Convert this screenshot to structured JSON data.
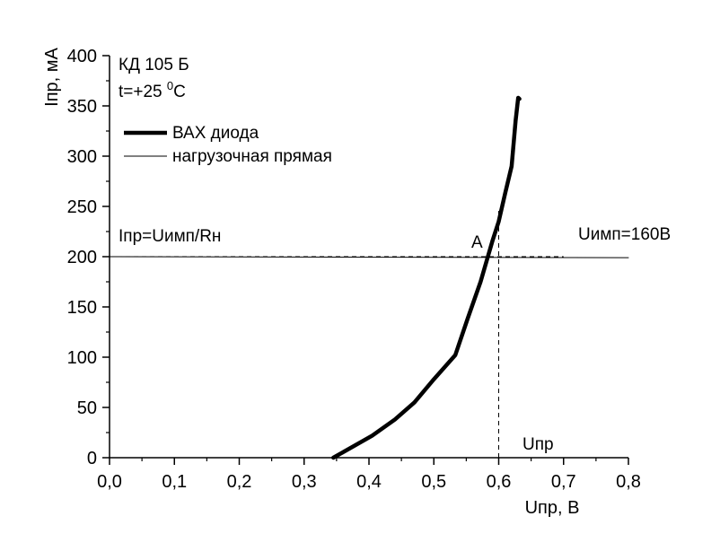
{
  "chart_data": {
    "type": "line",
    "xlabel": "Uпр, В",
    "ylabel": "Iпр, мА",
    "xlim": [
      0,
      0.8
    ],
    "ylim": [
      0,
      400
    ],
    "x_ticks": [
      0,
      0.1,
      0.2,
      0.3,
      0.4,
      0.5,
      0.6,
      0.7,
      0.8
    ],
    "x_tick_labels": [
      "0,0",
      "0,1",
      "0,2",
      "0,3",
      "0,4",
      "0,5",
      "0,6",
      "0,7",
      "0,8"
    ],
    "y_ticks": [
      0,
      50,
      100,
      150,
      200,
      250,
      300,
      350,
      400
    ],
    "y_tick_labels": [
      "0",
      "50",
      "100",
      "150",
      "200",
      "250",
      "300",
      "350",
      "400"
    ],
    "grid": false,
    "legend_position": "top-left",
    "series": [
      {
        "name": "ВАХ диода",
        "style": "thick",
        "x": [
          0.345,
          0.405,
          0.44,
          0.47,
          0.5,
          0.533,
          0.552,
          0.572,
          0.59,
          0.6,
          0.61,
          0.62,
          0.626,
          0.63,
          0.632
        ],
        "y": [
          0,
          22,
          38,
          55,
          78,
          102,
          138,
          175,
          215,
          235,
          263,
          290,
          335,
          358,
          357
        ]
      },
      {
        "name": "нагрузочная прямая",
        "style": "thin",
        "x": [
          0,
          0.8
        ],
        "y": [
          200,
          199
        ]
      }
    ],
    "guides": {
      "vertical_dashed_x": 0.6,
      "vertical_dashed_y_range": [
        0,
        248
      ],
      "horizontal_dashed_y": 200,
      "horizontal_dashed_x_range": [
        0,
        0.7
      ]
    },
    "annotations": {
      "device": "КД 105 Б",
      "temperature_prefix": "t=+25 ",
      "temperature_sup": "0",
      "temperature_unit": "C",
      "current_formula": "Iпр=Uимп/Rн",
      "point_label": "A",
      "voltage_label": "Uимп=160В",
      "upr_label": "Uпр"
    }
  }
}
